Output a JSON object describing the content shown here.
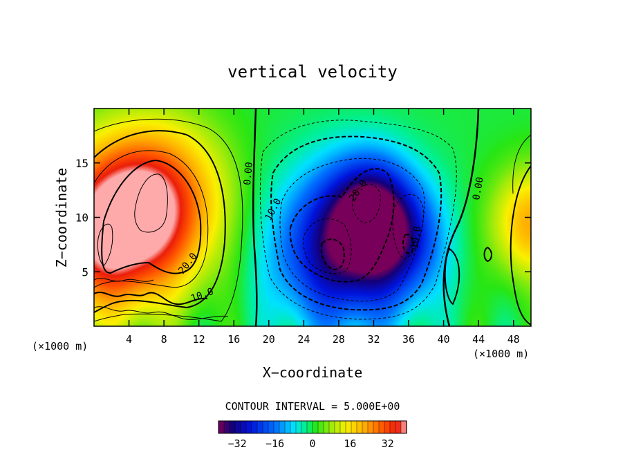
{
  "chart_data": {
    "type": "heatmap",
    "title": "vertical velocity",
    "xlabel": "X−coordinate",
    "ylabel": "Z−coordinate",
    "x_unit_left": "(×1000 m)",
    "x_unit_right": "(×1000 m)",
    "xlim": [
      0,
      50
    ],
    "ylim": [
      0,
      20
    ],
    "x_ticks": [
      4,
      8,
      12,
      16,
      20,
      24,
      28,
      32,
      36,
      40,
      44,
      48
    ],
    "y_ticks": [
      5,
      10,
      15
    ],
    "contour_interval_label": "CONTOUR INTERVAL = 5.000E+00",
    "colorbar": {
      "range": [
        -40,
        40
      ],
      "ticks": [
        "−32",
        "−16",
        "0",
        "16",
        "32"
      ]
    },
    "contour_labels": [
      "0.00",
      "0.00",
      "10.0",
      "10.0",
      "10.0",
      "20.0",
      "20.0"
    ],
    "features": [
      {
        "label": "updraft",
        "x": 6.5,
        "z": 11.5,
        "value": 35
      },
      {
        "label": "updraft",
        "x": 1.0,
        "z": 8.0,
        "value": 32
      },
      {
        "label": "downdraft",
        "x": 28.5,
        "z": 7.0,
        "value": -34
      },
      {
        "label": "downdraft",
        "x": 31.5,
        "z": 10.5,
        "value": -28
      },
      {
        "label": "downdraft",
        "x": 35.5,
        "z": 8.0,
        "value": -16
      },
      {
        "label": "updraft",
        "x": 50.0,
        "z": 9.5,
        "value": 22
      }
    ]
  }
}
